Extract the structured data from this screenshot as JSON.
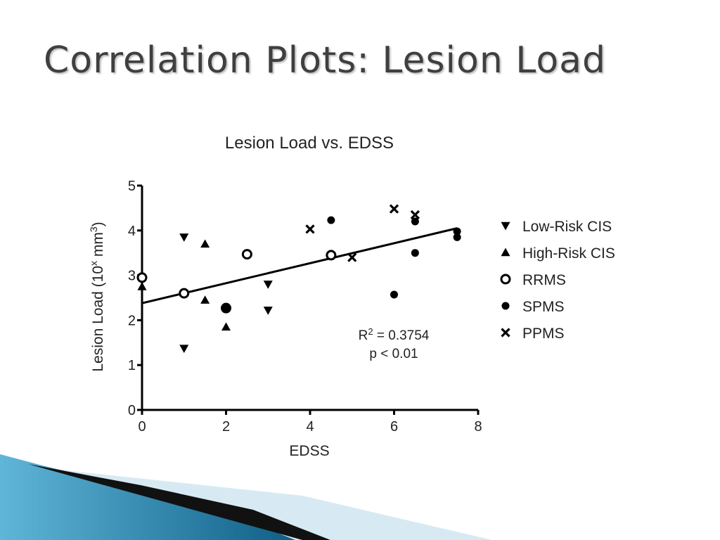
{
  "slide": {
    "title": "Correlation Plots: Lesion Load"
  },
  "chart_data": {
    "type": "scatter",
    "title": "Lesion Load vs. EDSS",
    "xlabel": "EDSS",
    "ylabel": "Lesion Load (10",
    "ylabel_sup1": "x",
    "ylabel_mid": " mm",
    "ylabel_sup2": "3",
    "ylabel_end": ")",
    "xlim": [
      0,
      8
    ],
    "ylim": [
      0,
      5
    ],
    "xticks": [
      0,
      2,
      4,
      6,
      8
    ],
    "yticks": [
      0,
      1,
      2,
      3,
      4,
      5
    ],
    "grid": false,
    "legend_position": "right",
    "series": [
      {
        "name": "Low-Risk CIS",
        "marker": "triangle-down",
        "points": [
          [
            1,
            3.85
          ],
          [
            1,
            1.37
          ],
          [
            3,
            2.8
          ],
          [
            3,
            2.22
          ]
        ]
      },
      {
        "name": "High-Risk CIS",
        "marker": "triangle-up",
        "points": [
          [
            0,
            2.75
          ],
          [
            1.5,
            3.7
          ],
          [
            1.5,
            2.45
          ],
          [
            2,
            1.85
          ]
        ]
      },
      {
        "name": "RRMS",
        "marker": "circle-open",
        "points": [
          [
            0,
            2.95
          ],
          [
            1,
            2.6
          ],
          [
            2,
            2.27
          ],
          [
            2.5,
            3.47
          ],
          [
            4.5,
            3.45
          ]
        ]
      },
      {
        "name": "SPMS",
        "marker": "circle-filled",
        "points": [
          [
            2,
            2.27
          ],
          [
            4.5,
            4.23
          ],
          [
            6,
            2.57
          ],
          [
            6.5,
            4.2
          ],
          [
            6.5,
            3.5
          ],
          [
            7.5,
            3.98
          ],
          [
            7.5,
            3.85
          ]
        ]
      },
      {
        "name": "PPMS",
        "marker": "x",
        "points": [
          [
            4,
            4.03
          ],
          [
            5,
            3.4
          ],
          [
            6,
            4.48
          ],
          [
            6.5,
            4.35
          ]
        ]
      }
    ],
    "regression": {
      "x": [
        0,
        7.5
      ],
      "y": [
        2.38,
        4.05
      ]
    },
    "annotation": {
      "r_label": "R",
      "r_sup": "2",
      "r_value": " = 0.3754",
      "p_value": "p < 0.01"
    }
  }
}
